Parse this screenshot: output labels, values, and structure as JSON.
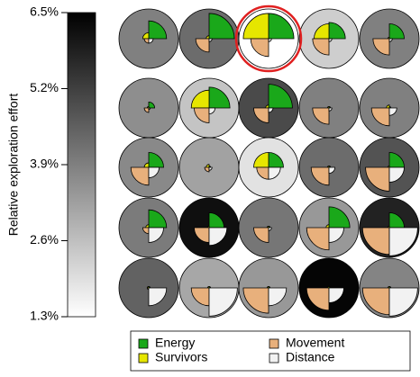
{
  "chart_data": {
    "type": "glyph",
    "colorbar_label": "Relative exploration effort",
    "ylim": [
      1.3,
      6.5
    ],
    "yticks": [
      {
        "value": 1.3,
        "label": "1.3%"
      },
      {
        "value": 2.6,
        "label": "2.6%"
      },
      {
        "value": 3.9,
        "label": "3.9%"
      },
      {
        "value": 5.2,
        "label": "5.2%"
      },
      {
        "value": 6.5,
        "label": "6.5%"
      }
    ],
    "cmap": [
      "#ffffff",
      "#000000"
    ],
    "values": [
      [
        3.9,
        4.3,
        1.3,
        2.3,
        3.9
      ],
      [
        3.6,
        2.5,
        5.0,
        3.9,
        3.9
      ],
      [
        3.7,
        3.2,
        1.9,
        4.3,
        4.8
      ],
      [
        4.0,
        6.2,
        4.1,
        3.4,
        5.8
      ],
      [
        4.5,
        3.1,
        3.4,
        6.4,
        3.8
      ]
    ],
    "highlight": {
      "row": 0,
      "col": 2,
      "color": "#e02020"
    },
    "series": [
      {
        "name": "Energy",
        "color": "#1aa81a",
        "values": [
          [
            0.6,
            0.85,
            0.85,
            0.55,
            0.5
          ],
          [
            0.2,
            0.7,
            0.8,
            0.05,
            0.05
          ],
          [
            0.5,
            0.05,
            0.5,
            0.05,
            0.5
          ],
          [
            0.6,
            0.5,
            0.05,
            0.7,
            0.5
          ],
          [
            0.05,
            0.05,
            0.05,
            0.05,
            0.05
          ]
        ]
      },
      {
        "name": "Survivors",
        "color": "#e6e600",
        "values": [
          [
            0.2,
            0.1,
            0.85,
            0.5,
            0.05
          ],
          [
            0.05,
            0.6,
            0.1,
            0.05,
            0.1
          ],
          [
            0.15,
            0.1,
            0.5,
            0.05,
            0.05
          ],
          [
            0.1,
            0.05,
            0.05,
            0.1,
            0.05
          ],
          [
            0.05,
            0.05,
            0.05,
            0.05,
            0.05
          ]
        ]
      },
      {
        "name": "Movement",
        "color": "#e8b07c",
        "values": [
          [
            0.15,
            0.45,
            0.6,
            0.55,
            0.55
          ],
          [
            0.15,
            0.5,
            0.5,
            0.55,
            0.6
          ],
          [
            0.6,
            0.15,
            0.4,
            0.6,
            0.8
          ],
          [
            0.2,
            0.5,
            0.5,
            0.75,
            0.9
          ],
          [
            0.05,
            0.6,
            0.85,
            0.75,
            0.9
          ]
        ]
      },
      {
        "name": "Distance",
        "color": "#f2f2f2",
        "values": [
          [
            0.15,
            0.1,
            0.1,
            0.1,
            0.1
          ],
          [
            0.05,
            0.2,
            0.15,
            0.1,
            0.25
          ],
          [
            0.35,
            0.1,
            0.4,
            0.2,
            0.5
          ],
          [
            0.5,
            0.6,
            0.1,
            0.5,
            0.95
          ],
          [
            0.6,
            0.95,
            0.6,
            0.5,
            0.95
          ]
        ]
      }
    ]
  }
}
